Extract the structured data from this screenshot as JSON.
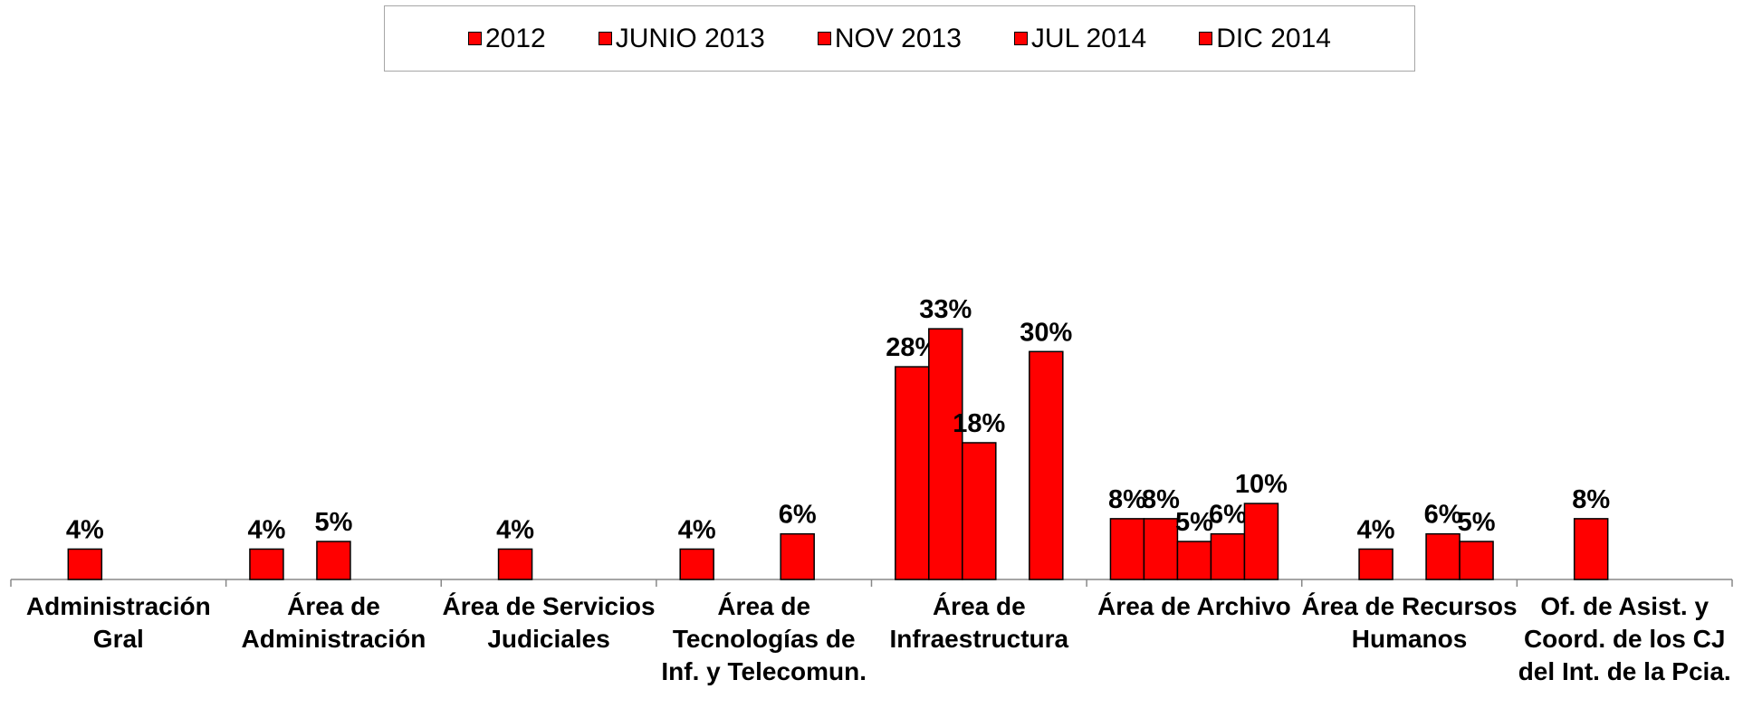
{
  "chart_data": {
    "type": "bar",
    "categories": [
      "Administración Gral",
      "Área de Administración",
      "Área de Servicios Judiciales",
      "Área de Tecnologías de Inf. y Telecomun.",
      "Área de Infraestructura",
      "Área de Archivo",
      "Área de Recursos Humanos",
      "Of. de Asist. y Coord. de los CJ del Int. de la Pcia."
    ],
    "series": [
      {
        "name": "2012",
        "color": "#ff0000",
        "values": [
          null,
          4,
          null,
          4,
          28,
          8,
          null,
          null
        ],
        "value_labels": [
          null,
          "4%",
          null,
          "4%",
          "28%",
          "8%",
          null,
          null
        ]
      },
      {
        "name": "JUNIO 2013",
        "color": "#ff0000",
        "values": [
          4,
          null,
          4,
          null,
          33,
          8,
          4,
          8
        ],
        "value_labels": [
          "4%",
          null,
          "4%",
          null,
          "33%",
          "8%",
          "4%",
          "8%"
        ]
      },
      {
        "name": "NOV 2013",
        "color": "#ff0000",
        "values": [
          null,
          5,
          null,
          null,
          18,
          5,
          null,
          null
        ],
        "value_labels": [
          null,
          "5%",
          null,
          null,
          "18%",
          "5%",
          null,
          null
        ]
      },
      {
        "name": "JUL 2014",
        "color": "#ff0000",
        "values": [
          null,
          null,
          null,
          6,
          null,
          6,
          6,
          null
        ],
        "value_labels": [
          null,
          null,
          null,
          "6%",
          null,
          "6%",
          "6%",
          null
        ]
      },
      {
        "name": "DIC 2014",
        "color": "#ff0000",
        "values": [
          null,
          null,
          null,
          null,
          30,
          10,
          5,
          null
        ],
        "value_labels": [
          null,
          null,
          null,
          null,
          "30%",
          "10%",
          "5%",
          null
        ]
      }
    ],
    "legend": "top"
  }
}
